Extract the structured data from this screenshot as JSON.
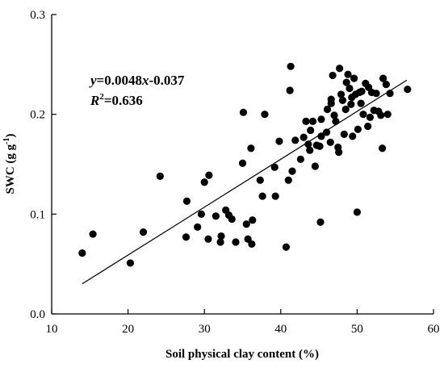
{
  "chart_data": {
    "type": "scatter",
    "xlabel": "Soil physical clay content (%)",
    "ylabel_main": "SWC (g g",
    "ylabel_exp": "-1",
    "ylabel_close": ")",
    "xlim": [
      10,
      60
    ],
    "ylim": [
      0.0,
      0.3
    ],
    "xticks": [
      10,
      20,
      30,
      40,
      50,
      60
    ],
    "xtick_labels": [
      "10",
      "20",
      "30",
      "40",
      "50",
      "60"
    ],
    "yticks": [
      0.0,
      0.1,
      0.2,
      0.3
    ],
    "ytick_labels": [
      "0.0",
      "0.1",
      "0.2",
      "0.3"
    ],
    "grid": false,
    "legend": "none",
    "equation": {
      "y": "y",
      "eq_mid": "=0.0048",
      "x": "x",
      "eq_tail": "-0.037",
      "r": "R",
      "r_exp": "2",
      "r_tail": "=0.636"
    },
    "fit_line": {
      "slope": 0.0048,
      "intercept": -0.037,
      "x_range": [
        14,
        56.5
      ]
    },
    "points": [
      [
        14,
        0.061
      ],
      [
        15.4,
        0.08
      ],
      [
        20.3,
        0.051
      ],
      [
        22,
        0.082
      ],
      [
        24.2,
        0.138
      ],
      [
        27.6,
        0.077
      ],
      [
        27.7,
        0.113
      ],
      [
        29.1,
        0.087
      ],
      [
        29.6,
        0.1
      ],
      [
        30,
        0.132
      ],
      [
        30.6,
        0.139
      ],
      [
        30.5,
        0.075
      ],
      [
        31.5,
        0.098
      ],
      [
        32.1,
        0.072
      ],
      [
        32.2,
        0.078
      ],
      [
        32.8,
        0.104
      ],
      [
        33.2,
        0.099
      ],
      [
        33.6,
        0.095
      ],
      [
        34.1,
        0.072
      ],
      [
        35,
        0.151
      ],
      [
        35.1,
        0.202
      ],
      [
        35.5,
        0.09
      ],
      [
        35.7,
        0.075
      ],
      [
        36.1,
        0.166
      ],
      [
        36.2,
        0.07
      ],
      [
        36.3,
        0.094
      ],
      [
        37.3,
        0.134
      ],
      [
        37.6,
        0.118
      ],
      [
        37.9,
        0.2
      ],
      [
        39.2,
        0.147
      ],
      [
        39.3,
        0.118
      ],
      [
        39.8,
        0.173
      ],
      [
        40.7,
        0.067
      ],
      [
        41,
        0.134
      ],
      [
        41.2,
        0.224
      ],
      [
        41.3,
        0.248
      ],
      [
        41.5,
        0.143
      ],
      [
        41.9,
        0.174
      ],
      [
        42.6,
        0.155
      ],
      [
        43,
        0.177
      ],
      [
        43.3,
        0.193
      ],
      [
        43.6,
        0.17
      ],
      [
        43.8,
        0.164
      ],
      [
        43.9,
        0.184
      ],
      [
        44.2,
        0.193
      ],
      [
        44.5,
        0.148
      ],
      [
        44.7,
        0.169
      ],
      [
        45.1,
        0.168
      ],
      [
        45.3,
        0.178
      ],
      [
        45.3,
        0.195
      ],
      [
        45.2,
        0.092
      ],
      [
        46,
        0.182
      ],
      [
        46.1,
        0.205
      ],
      [
        46.5,
        0.172
      ],
      [
        46.6,
        0.211
      ],
      [
        46.6,
        0.215
      ],
      [
        46.8,
        0.239
      ],
      [
        47,
        0.199
      ],
      [
        47.2,
        0.193
      ],
      [
        47.5,
        0.167
      ],
      [
        47.6,
        0.162
      ],
      [
        47.7,
        0.246
      ],
      [
        47.9,
        0.22
      ],
      [
        48.1,
        0.214
      ],
      [
        48.3,
        0.18
      ],
      [
        48.5,
        0.205
      ],
      [
        48.6,
        0.232
      ],
      [
        48.8,
        0.24
      ],
      [
        49,
        0.226
      ],
      [
        49.2,
        0.21
      ],
      [
        49.3,
        0.217
      ],
      [
        49.4,
        0.178
      ],
      [
        49.6,
        0.236
      ],
      [
        49.8,
        0.22
      ],
      [
        50,
        0.102
      ],
      [
        50.1,
        0.185
      ],
      [
        50.3,
        0.222
      ],
      [
        50.5,
        0.211
      ],
      [
        50.6,
        0.223
      ],
      [
        50.8,
        0.2
      ],
      [
        51.1,
        0.231
      ],
      [
        51.4,
        0.188
      ],
      [
        51.5,
        0.227
      ],
      [
        51.7,
        0.197
      ],
      [
        51.9,
        0.222
      ],
      [
        52.2,
        0.204
      ],
      [
        52.5,
        0.221
      ],
      [
        52.8,
        0.203
      ],
      [
        53.1,
        0.199
      ],
      [
        53.3,
        0.166
      ],
      [
        53.4,
        0.236
      ],
      [
        53.8,
        0.23
      ],
      [
        54,
        0.2
      ],
      [
        54.3,
        0.221
      ],
      [
        56.6,
        0.225
      ]
    ]
  }
}
